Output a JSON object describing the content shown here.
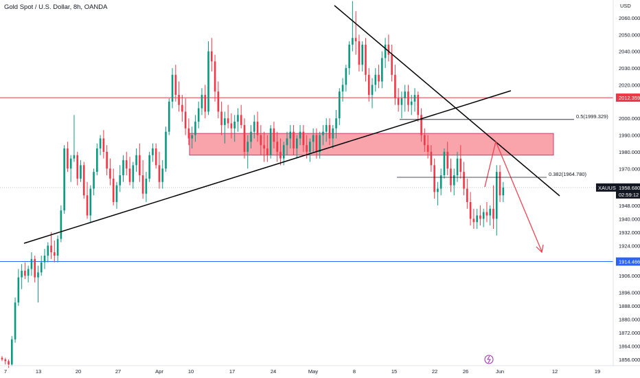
{
  "chart_data": {
    "type": "candlestick",
    "title": "Gold Spot / U.S. Dollar, 8h, OANDA",
    "currency": "USD",
    "y_ticks": [
      2060,
      2050,
      2040,
      2030,
      2020,
      2000,
      1990,
      1980,
      1970,
      1948,
      1940,
      1932,
      1924,
      1906,
      1896,
      1888,
      1880,
      1872,
      1864,
      1856
    ],
    "x_ticks": [
      "7",
      "13",
      "20",
      "27",
      "Apr",
      "10",
      "17",
      "24",
      "May",
      "8",
      "15",
      "22",
      "26",
      "Jun",
      "12",
      "19"
    ],
    "horizontal_levels": [
      {
        "price": 2012.359,
        "label": "2012.359",
        "color": "#f23645"
      },
      {
        "price": 1914.466,
        "label": "1914.466",
        "color": "#2962ff"
      }
    ],
    "current_price": {
      "symbol": "XAUUSD",
      "price": "1958.680",
      "countdown": "02:59:12"
    },
    "resistance_zone": {
      "low": 1978,
      "high": 1991
    },
    "fib_levels": [
      {
        "label": "0.5(1999.329)",
        "price": 1999.329
      },
      {
        "label": "0.382(1964.780)",
        "price": 1964.78
      }
    ],
    "candles": [
      [
        1857,
        1858,
        1855,
        1856
      ],
      [
        1856,
        1857,
        1853,
        1855
      ],
      [
        1855,
        1856,
        1851,
        1853
      ],
      [
        1853,
        1870,
        1852,
        1868
      ],
      [
        1868,
        1893,
        1866,
        1890
      ],
      [
        1890,
        1910,
        1888,
        1905
      ],
      [
        1905,
        1913,
        1898,
        1909
      ],
      [
        1909,
        1914,
        1904,
        1906
      ],
      [
        1906,
        1912,
        1902,
        1910
      ],
      [
        1910,
        1920,
        1906,
        1916
      ],
      [
        1916,
        1918,
        1902,
        1905
      ],
      [
        1905,
        1912,
        1890,
        1908
      ],
      [
        1908,
        1918,
        1906,
        1914
      ],
      [
        1914,
        1922,
        1910,
        1918
      ],
      [
        1918,
        1926,
        1914,
        1924
      ],
      [
        1924,
        1932,
        1916,
        1920
      ],
      [
        1920,
        1927,
        1914,
        1918
      ],
      [
        1918,
        1930,
        1914,
        1928
      ],
      [
        1928,
        1948,
        1926,
        1945
      ],
      [
        1945,
        1984,
        1943,
        1982
      ],
      [
        1982,
        1986,
        1968,
        1970
      ],
      [
        1970,
        1978,
        1962,
        1976
      ],
      [
        1976,
        2002,
        1974,
        1978
      ],
      [
        1978,
        1980,
        1960,
        1964
      ],
      [
        1964,
        1975,
        1962,
        1972
      ],
      [
        1972,
        1974,
        1952,
        1954
      ],
      [
        1954,
        1962,
        1940,
        1942
      ],
      [
        1942,
        1960,
        1938,
        1958
      ],
      [
        1958,
        1970,
        1954,
        1968
      ],
      [
        1968,
        1985,
        1966,
        1982
      ],
      [
        1982,
        1990,
        1978,
        1988
      ],
      [
        1988,
        1993,
        1976,
        1980
      ],
      [
        1980,
        1984,
        1966,
        1970
      ],
      [
        1970,
        1976,
        1960,
        1964
      ],
      [
        1964,
        1970,
        1948,
        1950
      ],
      [
        1950,
        1962,
        1946,
        1960
      ],
      [
        1960,
        1972,
        1956,
        1966
      ],
      [
        1966,
        1978,
        1962,
        1975
      ],
      [
        1975,
        1980,
        1966,
        1970
      ],
      [
        1970,
        1977,
        1960,
        1962
      ],
      [
        1962,
        1974,
        1958,
        1972
      ],
      [
        1972,
        1982,
        1968,
        1978
      ],
      [
        1978,
        1985,
        1962,
        1966
      ],
      [
        1966,
        1975,
        1952,
        1955
      ],
      [
        1955,
        1968,
        1950,
        1964
      ],
      [
        1964,
        1980,
        1962,
        1978
      ],
      [
        1978,
        1985,
        1974,
        1982
      ],
      [
        1982,
        1985,
        1970,
        1972
      ],
      [
        1972,
        1980,
        1958,
        1962
      ],
      [
        1962,
        1975,
        1958,
        1970
      ],
      [
        1970,
        1995,
        1968,
        1992
      ],
      [
        1992,
        2012,
        1990,
        2010
      ],
      [
        2010,
        2030,
        2006,
        2026
      ],
      [
        2026,
        2032,
        2010,
        2014
      ],
      [
        2014,
        2022,
        2004,
        2008
      ],
      [
        2008,
        2014,
        1998,
        2004
      ],
      [
        2004,
        2012,
        1990,
        1994
      ],
      [
        1994,
        2000,
        1984,
        1988
      ],
      [
        1988,
        1995,
        1982,
        1990
      ],
      [
        1990,
        2002,
        1986,
        1998
      ],
      [
        1998,
        2010,
        1994,
        2006
      ],
      [
        2006,
        2018,
        2002,
        2014
      ],
      [
        2014,
        2020,
        2000,
        2004
      ],
      [
        2004,
        2046,
        2002,
        2040
      ],
      [
        2040,
        2048,
        2028,
        2034
      ],
      [
        2034,
        2038,
        2010,
        2016
      ],
      [
        2016,
        2022,
        2000,
        2004
      ],
      [
        2004,
        2010,
        1990,
        1996
      ],
      [
        1996,
        2004,
        1985,
        2000
      ],
      [
        2000,
        2008,
        1994,
        1997
      ],
      [
        1997,
        2003,
        1988,
        1994
      ],
      [
        1994,
        2002,
        1986,
        1998
      ],
      [
        1998,
        2006,
        1992,
        2002
      ],
      [
        2002,
        2008,
        1994,
        1996
      ],
      [
        1996,
        2000,
        1976,
        1980
      ],
      [
        1980,
        1990,
        1970,
        1986
      ],
      [
        1986,
        1996,
        1982,
        1992
      ],
      [
        1992,
        2002,
        1988,
        1998
      ],
      [
        1998,
        2004,
        1986,
        1990
      ],
      [
        1990,
        1996,
        1978,
        1984
      ],
      [
        1984,
        1992,
        1974,
        1982
      ],
      [
        1982,
        1990,
        1974,
        1978
      ],
      [
        1978,
        1996,
        1976,
        1994
      ],
      [
        1994,
        1998,
        1982,
        1986
      ],
      [
        1986,
        1992,
        1974,
        1980
      ],
      [
        1980,
        1988,
        1972,
        1976
      ],
      [
        1976,
        1986,
        1972,
        1984
      ],
      [
        1984,
        1992,
        1978,
        1988
      ],
      [
        1988,
        1996,
        1982,
        1992
      ],
      [
        1992,
        1996,
        1978,
        1982
      ],
      [
        1982,
        1990,
        1976,
        1988
      ],
      [
        1988,
        1996,
        1984,
        1992
      ],
      [
        1992,
        1996,
        1980,
        1984
      ],
      [
        1984,
        1990,
        1976,
        1980
      ],
      [
        1980,
        1988,
        1974,
        1986
      ],
      [
        1986,
        1994,
        1980,
        1990
      ],
      [
        1990,
        1994,
        1976,
        1980
      ],
      [
        1980,
        1992,
        1976,
        1990
      ],
      [
        1990,
        1996,
        1984,
        1992
      ],
      [
        1992,
        2000,
        1986,
        1996
      ],
      [
        1996,
        2000,
        1984,
        1988
      ],
      [
        1988,
        1996,
        1982,
        1994
      ],
      [
        1994,
        2005,
        1988,
        2000
      ],
      [
        2000,
        2018,
        1996,
        2016
      ],
      [
        2016,
        2024,
        2010,
        2020
      ],
      [
        2020,
        2032,
        2016,
        2030
      ],
      [
        2030,
        2046,
        2026,
        2044
      ],
      [
        2044,
        2070,
        2040,
        2048
      ],
      [
        2048,
        2064,
        2038,
        2046
      ],
      [
        2046,
        2050,
        2028,
        2032
      ],
      [
        2032,
        2046,
        2028,
        2044
      ],
      [
        2044,
        2048,
        2022,
        2026
      ],
      [
        2026,
        2030,
        2010,
        2014
      ],
      [
        2014,
        2024,
        2006,
        2020
      ],
      [
        2020,
        2030,
        2016,
        2026
      ],
      [
        2026,
        2032,
        2018,
        2022
      ],
      [
        2022,
        2040,
        2018,
        2036
      ],
      [
        2036,
        2048,
        2030,
        2044
      ],
      [
        2044,
        2050,
        2034,
        2038
      ],
      [
        2038,
        2044,
        2022,
        2026
      ],
      [
        2026,
        2032,
        2008,
        2012
      ],
      [
        2012,
        2018,
        2004,
        2008
      ],
      [
        2008,
        2016,
        2000,
        2012
      ],
      [
        2012,
        2020,
        2004,
        2016
      ],
      [
        2016,
        2020,
        2004,
        2008
      ],
      [
        2008,
        2014,
        2002,
        2010
      ],
      [
        2010,
        2018,
        2004,
        2014
      ],
      [
        2014,
        2016,
        1998,
        2002
      ],
      [
        2002,
        2006,
        1986,
        1990
      ],
      [
        1990,
        1994,
        1980,
        1984
      ],
      [
        1984,
        1990,
        1976,
        1980
      ],
      [
        1980,
        1984,
        1968,
        1972
      ],
      [
        1972,
        1976,
        1952,
        1956
      ],
      [
        1956,
        1962,
        1948,
        1958
      ],
      [
        1958,
        1970,
        1954,
        1966
      ],
      [
        1966,
        1982,
        1964,
        1980
      ],
      [
        1980,
        1986,
        1966,
        1970
      ],
      [
        1970,
        1976,
        1956,
        1960
      ],
      [
        1960,
        1970,
        1954,
        1966
      ],
      [
        1966,
        1980,
        1962,
        1976
      ],
      [
        1976,
        1984,
        1964,
        1968
      ],
      [
        1968,
        1974,
        1954,
        1958
      ],
      [
        1958,
        1964,
        1946,
        1950
      ],
      [
        1950,
        1956,
        1936,
        1940
      ],
      [
        1940,
        1946,
        1934,
        1938
      ],
      [
        1938,
        1946,
        1934,
        1942
      ],
      [
        1942,
        1948,
        1936,
        1940
      ],
      [
        1940,
        1946,
        1935,
        1944
      ],
      [
        1944,
        1950,
        1938,
        1942
      ],
      [
        1942,
        1948,
        1936,
        1946
      ],
      [
        1946,
        1960,
        1934,
        1940
      ],
      [
        1940,
        1972,
        1930,
        1968
      ],
      [
        1968,
        1972,
        1950,
        1954
      ],
      [
        1954,
        1962,
        1950,
        1958.68
      ]
    ]
  }
}
